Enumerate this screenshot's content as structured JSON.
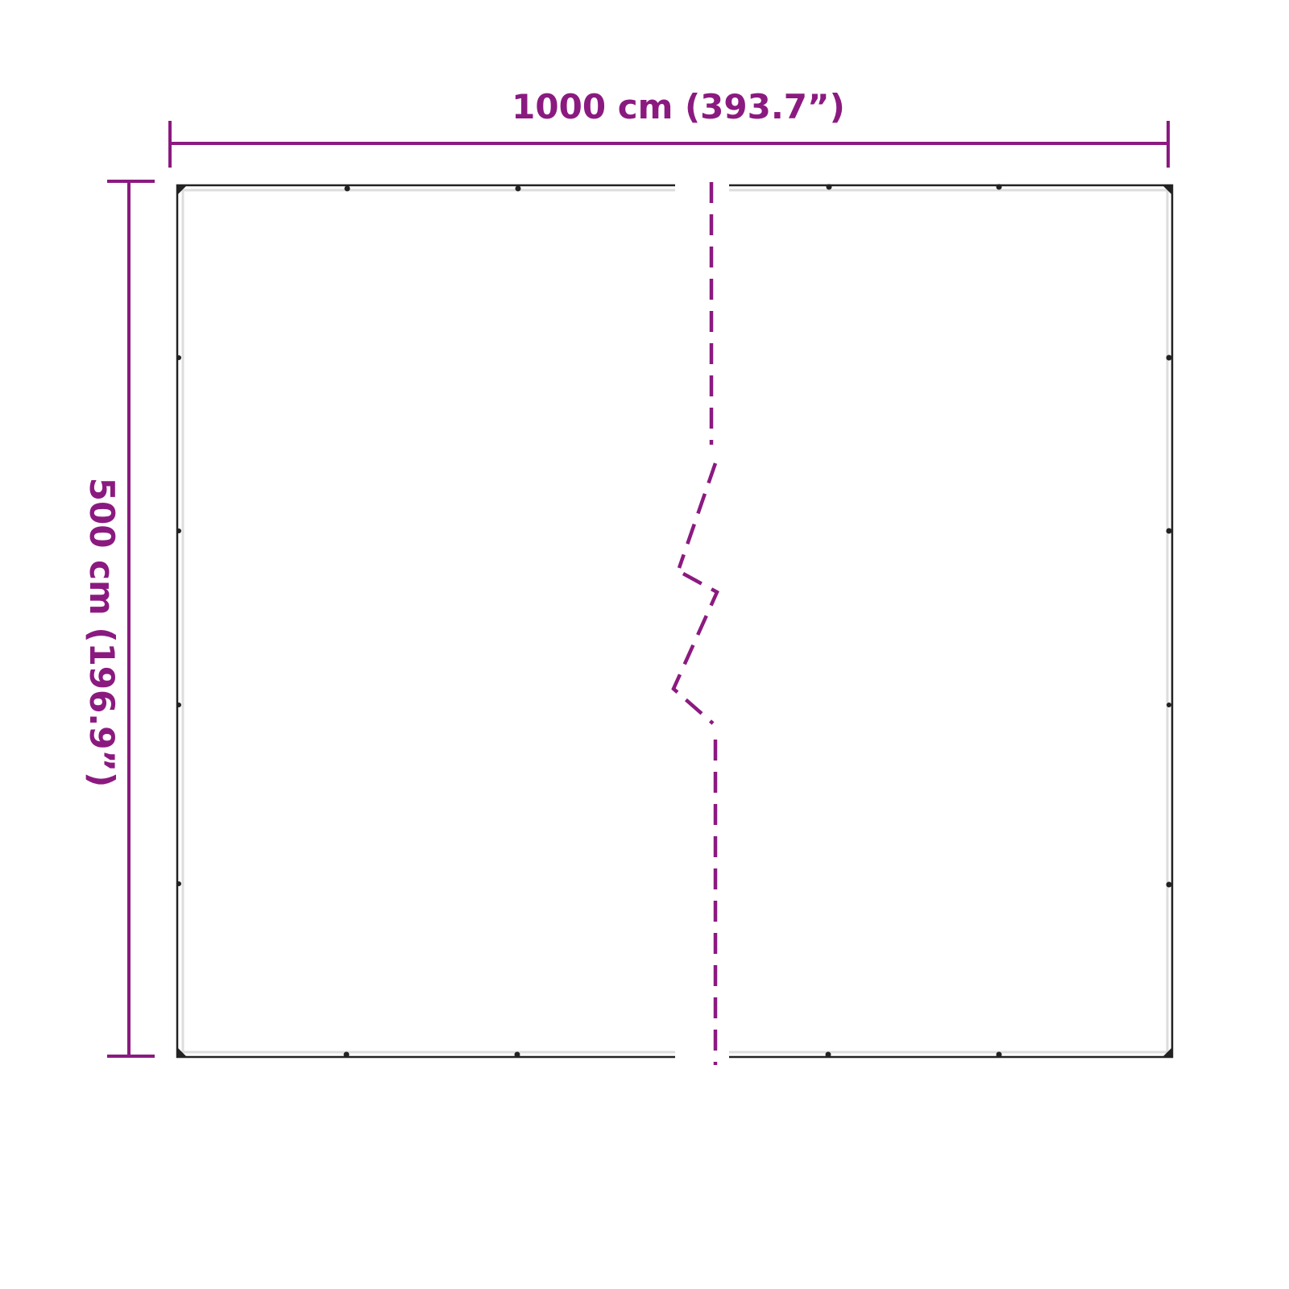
{
  "dimensions": {
    "width_label": "1000 cm (393.7”)",
    "height_label": "500 cm (196.9”)"
  },
  "colors": {
    "accent": "#8B1A80",
    "outline": "#222222"
  }
}
